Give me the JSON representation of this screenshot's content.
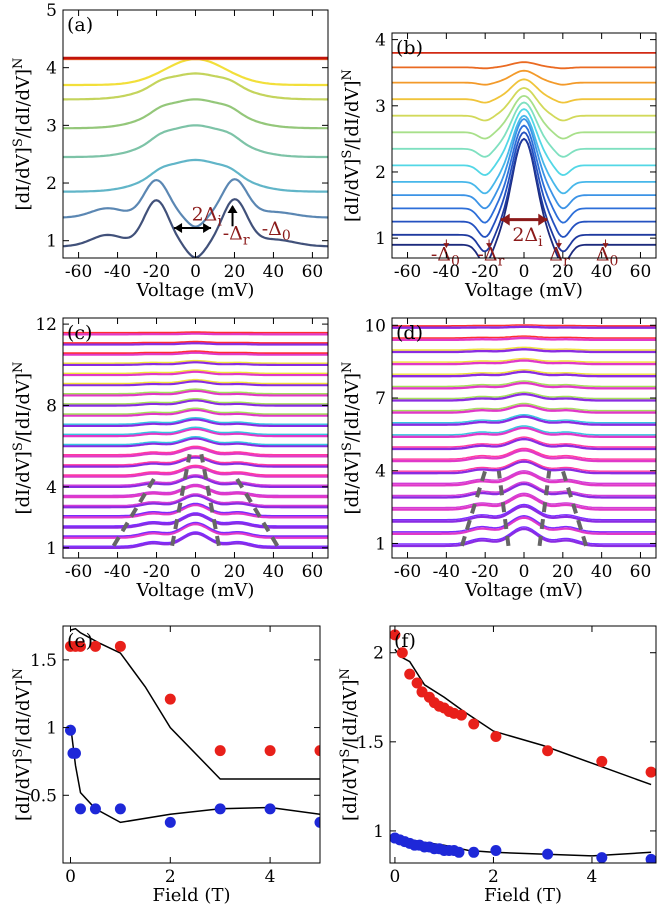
{
  "chart_data": [
    {
      "panel": "(a)",
      "type": "line",
      "xlabel": "Voltage (mV)",
      "ylabel": "[dI/dV]S/[dI/dV]N",
      "xlim": [
        -68,
        68
      ],
      "ylim": [
        0.7,
        5.0
      ],
      "xticks": [
        -60,
        -40,
        -20,
        0,
        20,
        40,
        60
      ],
      "xtick_labels": [
        "-60",
        "-40",
        "-20",
        "0",
        "20",
        "40",
        "60"
      ],
      "yticks": [
        1,
        2,
        3,
        4,
        5
      ],
      "ytick_labels": [
        "1",
        "2",
        "3",
        "4",
        "5"
      ],
      "curves": [
        {
          "offset": 0.9,
          "amp": 0.8,
          "color": "#41517a",
          "shape": "gap"
        },
        {
          "offset": 1.4,
          "amp": 0.65,
          "color": "#5b87b3",
          "shape": "gap"
        },
        {
          "offset": 1.85,
          "amp": 0.55,
          "color": "#61b5c8",
          "shape": "soft"
        },
        {
          "offset": 2.45,
          "amp": 0.55,
          "color": "#7dc3a7",
          "shape": "soft"
        },
        {
          "offset": 2.95,
          "amp": 0.5,
          "color": "#94c77a",
          "shape": "soft"
        },
        {
          "offset": 3.45,
          "amp": 0.45,
          "color": "#c4d45c",
          "shape": "soft"
        },
        {
          "offset": 3.7,
          "amp": 0.45,
          "color": "#f2df3a",
          "shape": "peak"
        },
        {
          "offset": 4.15,
          "amp": 0.0,
          "color": "#e04a1e",
          "shape": "flat"
        },
        {
          "offset": 4.17,
          "amp": 0.0,
          "color": "#c0140c",
          "shape": "flat"
        }
      ],
      "annotations": {
        "two_delta_i": "2Δ",
        "two_delta_i_sub": "i",
        "minus_delta_r": "-Δ",
        "minus_delta_r_sub": "r",
        "minus_delta_0": "-Δ",
        "minus_delta_0_sub": "0"
      }
    },
    {
      "panel": "(b)",
      "type": "line",
      "xlabel": "Voltage (mV)",
      "ylabel": "[dI/dV]S/[dI/dV]N",
      "xlim": [
        -68,
        68
      ],
      "ylim": [
        0.7,
        4.1
      ],
      "xticks": [
        -60,
        -40,
        -20,
        0,
        20,
        40,
        60
      ],
      "xtick_labels": [
        "-60",
        "-40",
        "-20",
        "0",
        "20",
        "40",
        "60"
      ],
      "yticks": [
        1,
        2,
        3,
        4
      ],
      "ytick_labels": [
        "1",
        "2",
        "3",
        "4"
      ],
      "curves": [
        {
          "offset": 0.9,
          "amp": 1.6,
          "color": "#1c2a7d"
        },
        {
          "offset": 1.05,
          "amp": 1.45,
          "color": "#1f3a9f"
        },
        {
          "offset": 1.25,
          "amp": 1.35,
          "color": "#2451c0"
        },
        {
          "offset": 1.45,
          "amp": 1.25,
          "color": "#2d6fd9"
        },
        {
          "offset": 1.65,
          "amp": 1.15,
          "color": "#3b93e6"
        },
        {
          "offset": 1.85,
          "amp": 1.0,
          "color": "#47b7ea"
        },
        {
          "offset": 2.1,
          "amp": 0.85,
          "color": "#52d7e6"
        },
        {
          "offset": 2.35,
          "amp": 0.7,
          "color": "#7fe0c0"
        },
        {
          "offset": 2.6,
          "amp": 0.55,
          "color": "#a8e08a"
        },
        {
          "offset": 2.85,
          "amp": 0.42,
          "color": "#d2d95a"
        },
        {
          "offset": 3.1,
          "amp": 0.3,
          "color": "#f0c43a"
        },
        {
          "offset": 3.35,
          "amp": 0.18,
          "color": "#f39a2a"
        },
        {
          "offset": 3.58,
          "amp": 0.08,
          "color": "#ea6a22"
        },
        {
          "offset": 3.8,
          "amp": 0.0,
          "color": "#d22a14"
        }
      ],
      "annotations": {
        "two_delta_i": "2Δ",
        "two_delta_i_sub": "i",
        "minus_delta_0": "-Δ",
        "minus_delta_0_sub": "0",
        "minus_delta_r": "-Δ",
        "minus_delta_r_sub": "r",
        "delta_r": "Δ",
        "delta_r_sub": "r",
        "delta_0": "Δ",
        "delta_0_sub": "0"
      }
    },
    {
      "panel": "(c)",
      "type": "line",
      "xlabel": "Voltage (mV)",
      "ylabel": "[dI/dV]S/[dI/dV]N",
      "xlim": [
        -68,
        68
      ],
      "ylim": [
        0.5,
        12.3
      ],
      "xticks": [
        -60,
        -40,
        -20,
        0,
        20,
        40,
        60
      ],
      "xtick_labels": [
        "-60",
        "-40",
        "-20",
        "0",
        "20",
        "40",
        "60"
      ],
      "yticks": [
        1,
        4,
        8,
        12
      ],
      "ytick_labels": [
        "1",
        "4",
        "8",
        "12"
      ],
      "n_curves": 22,
      "offset_start": 1.0,
      "offset_step": 0.5,
      "colors": [
        "#7b2cff",
        "#d23cd6",
        "#ff3aa0",
        "#36c6e0",
        "#a6e05a",
        "#f0e23a",
        "#ff3030"
      ]
    },
    {
      "panel": "(d)",
      "type": "line",
      "xlabel": "Voltage (mV)",
      "ylabel": "[dI/dV]S/[dI/dV]N",
      "xlim": [
        -68,
        68
      ],
      "ylim": [
        0.4,
        10.3
      ],
      "xticks": [
        -60,
        -40,
        -20,
        0,
        20,
        40,
        60
      ],
      "xtick_labels": [
        "-60",
        "-40",
        "-20",
        "0",
        "20",
        "40",
        "60"
      ],
      "yticks": [
        1,
        4,
        7,
        10
      ],
      "ytick_labels": [
        "1",
        "4",
        "7",
        "10"
      ],
      "n_curves": 19,
      "offset_start": 0.9,
      "offset_step": 0.5,
      "colors": [
        "#7b2cff",
        "#d23cd6",
        "#ff3aa0",
        "#36c6e0",
        "#a6e05a",
        "#f0e23a",
        "#ff3030"
      ]
    },
    {
      "panel": "(e)",
      "type": "scatter",
      "xlabel": "Field (T)",
      "ylabel": "[dI/dV]S/[dI/dV]N",
      "xlim": [
        -0.15,
        5.0
      ],
      "ylim": [
        0.0,
        1.75
      ],
      "xticks": [
        0,
        2,
        4
      ],
      "xtick_labels": [
        "0",
        "2",
        "4"
      ],
      "yticks": [
        0.5,
        1,
        1.5
      ],
      "ytick_labels": [
        "0.5",
        "1",
        "1.5"
      ],
      "series": [
        {
          "name": "red",
          "color": "#e8201a",
          "x": [
            0,
            0.1,
            0.2,
            0.5,
            1.0,
            2.0,
            3.0,
            4.0,
            5.0
          ],
          "y": [
            1.6,
            1.6,
            1.6,
            1.6,
            1.6,
            1.21,
            0.83,
            0.83,
            0.83
          ]
        },
        {
          "name": "blue",
          "color": "#1e28d8",
          "x": [
            0,
            0.05,
            0.1,
            0.2,
            0.5,
            1.0,
            2.0,
            3.0,
            4.0,
            5.0
          ],
          "y": [
            0.98,
            0.81,
            0.81,
            0.4,
            0.4,
            0.4,
            0.3,
            0.4,
            0.4,
            0.3
          ]
        }
      ],
      "fits": [
        {
          "x": [
            0,
            0.1,
            0.2,
            0.6,
            1.0,
            1.5,
            2.0,
            3.0,
            4.0,
            5.0
          ],
          "y": [
            1.72,
            1.73,
            1.7,
            1.62,
            1.55,
            1.3,
            1.0,
            0.62,
            0.62,
            0.62
          ]
        },
        {
          "x": [
            0,
            0.1,
            0.2,
            0.5,
            1.0,
            2.0,
            3.0,
            4.0,
            5.0
          ],
          "y": [
            1.02,
            0.72,
            0.52,
            0.4,
            0.3,
            0.36,
            0.4,
            0.41,
            0.36
          ]
        }
      ]
    },
    {
      "panel": "(f)",
      "type": "scatter",
      "xlabel": "Field (T)",
      "ylabel": "[dI/dV]S/[dI/dV]N",
      "xlim": [
        -0.1,
        5.3
      ],
      "ylim": [
        0.82,
        2.15
      ],
      "xticks": [
        0,
        2,
        4
      ],
      "xtick_labels": [
        "0",
        "2",
        "4"
      ],
      "yticks": [
        1,
        1.5,
        2
      ],
      "ytick_labels": [
        "1",
        "1.5",
        "2"
      ],
      "series": [
        {
          "name": "red",
          "color": "#e8201a",
          "x": [
            0,
            0.15,
            0.3,
            0.45,
            0.55,
            0.7,
            0.8,
            0.9,
            1.0,
            1.1,
            1.2,
            1.35,
            1.6,
            2.05,
            3.1,
            4.2,
            5.2
          ],
          "y": [
            2.1,
            2.0,
            1.88,
            1.83,
            1.78,
            1.75,
            1.72,
            1.7,
            1.69,
            1.67,
            1.66,
            1.65,
            1.6,
            1.53,
            1.45,
            1.39,
            1.33
          ]
        },
        {
          "name": "blue",
          "color": "#1e28d8",
          "x": [
            0,
            0.1,
            0.2,
            0.3,
            0.4,
            0.5,
            0.6,
            0.7,
            0.8,
            0.9,
            1.0,
            1.1,
            1.2,
            1.3,
            1.6,
            2.05,
            3.1,
            4.2,
            5.2
          ],
          "y": [
            0.96,
            0.95,
            0.94,
            0.93,
            0.92,
            0.92,
            0.91,
            0.91,
            0.9,
            0.9,
            0.89,
            0.89,
            0.89,
            0.88,
            0.88,
            0.89,
            0.87,
            0.85,
            0.84
          ]
        }
      ],
      "fits": [
        {
          "x": [
            0,
            0.1,
            0.3,
            0.6,
            1.0,
            1.4,
            2.0,
            3.0,
            4.0,
            5.2
          ],
          "y": [
            2.02,
            1.98,
            1.95,
            1.82,
            1.75,
            1.67,
            1.56,
            1.48,
            1.38,
            1.26
          ]
        },
        {
          "x": [
            0,
            0.2,
            0.5,
            1.0,
            1.5,
            2.0,
            3.0,
            4.0,
            5.2
          ],
          "y": [
            0.98,
            0.96,
            0.94,
            0.92,
            0.89,
            0.88,
            0.87,
            0.86,
            0.88
          ]
        }
      ]
    }
  ]
}
